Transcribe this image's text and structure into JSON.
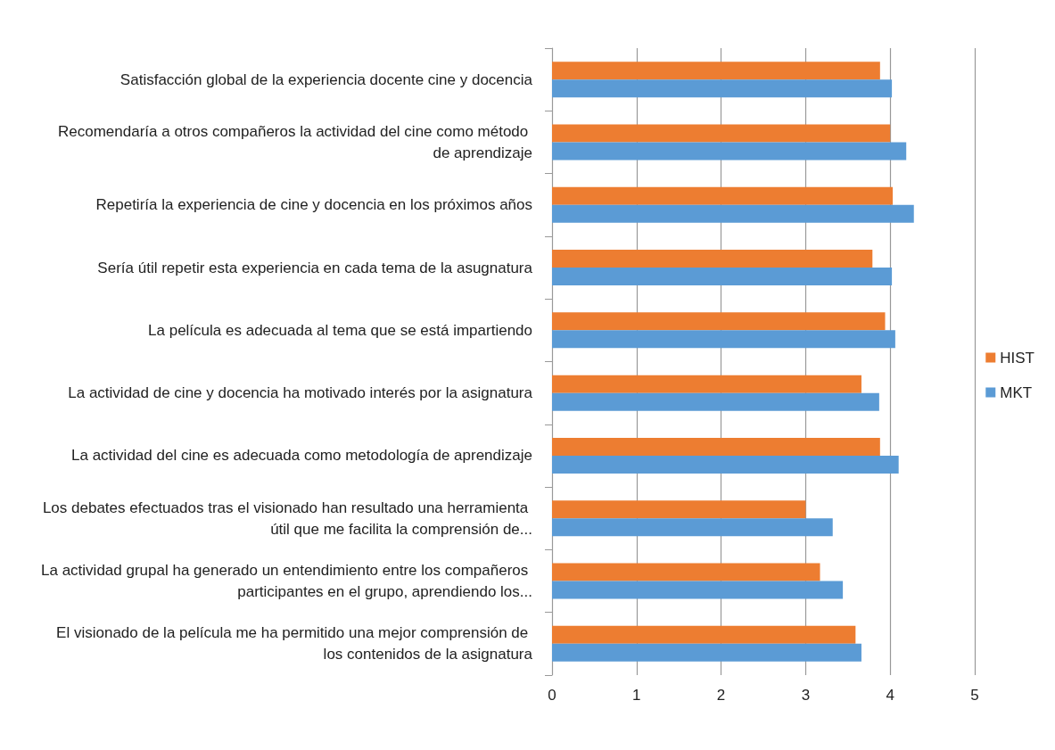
{
  "chart_data": {
    "type": "bar",
    "orientation": "horizontal",
    "categories": [
      "Satisfacción global de la experiencia docente cine y docencia",
      "Recomendaría a otros compañeros la actividad del cine como método de aprendizaje",
      "Repetiría la experiencia de cine y docencia en los próximos años",
      "Sería útil repetir esta experiencia en cada tema de la asugnatura",
      "La película es adecuada al tema que se está impartiendo",
      "La actividad de cine y docencia ha motivado interés por la asignatura",
      "La actividad del cine es adecuada como metodología de aprendizaje",
      "Los debates efectuados tras el visionado han resultado una herramienta útil que me facilita la comprensión de...",
      "La actividad grupal ha generado un entendimiento entre los compañeros participantes en el grupo, aprendiendo los...",
      "El visionado de la película me ha permitido una mejor comprensión de los contenidos de la asignatura"
    ],
    "series": [
      {
        "name": "HIST",
        "color": "#ed7d31",
        "values": [
          3.88,
          4.0,
          4.03,
          3.79,
          3.94,
          3.66,
          3.88,
          3.0,
          3.17,
          3.59
        ]
      },
      {
        "name": "MKT",
        "color": "#5b9bd5",
        "values": [
          4.02,
          4.19,
          4.28,
          4.02,
          4.06,
          3.87,
          4.1,
          3.32,
          3.44,
          3.66
        ]
      }
    ],
    "xlim": [
      0,
      5
    ],
    "xticks": [
      0,
      1,
      2,
      3,
      4,
      5
    ],
    "grid": "x",
    "legend": "right"
  }
}
